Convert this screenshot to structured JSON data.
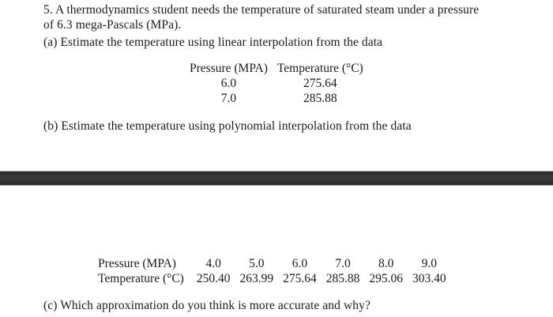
{
  "problem": {
    "number": "5.",
    "statement_line1": "5. A thermodynamics student needs the temperature of saturated steam under a pressure",
    "statement_line2": "of 6.3 mega-Pascals (MPa).",
    "part_a": "(a) Estimate the temperature using linear interpolation from the data",
    "part_b": "(b) Estimate the temperature using polynomial interpolation from the data",
    "part_c": "(c) Which approximation do you think is more accurate and why?"
  },
  "table_a": {
    "headers": [
      "Pressure (MPA)",
      "Temperature (°C)"
    ],
    "rows": [
      [
        "6.0",
        "275.64"
      ],
      [
        "7.0",
        "285.88"
      ]
    ]
  },
  "table_b": {
    "row_labels": [
      "Pressure (MPA)",
      "Temperature (°C)"
    ],
    "pressure": [
      "4.0",
      "5.0",
      "6.0",
      "7.0",
      "8.0",
      "9.0"
    ],
    "temperature": [
      "250.40",
      "263.99",
      "275.64",
      "285.88",
      "295.06",
      "303.40"
    ]
  },
  "colors": {
    "text": "#1a1a1a",
    "divider_bar": "#333333",
    "background": "#ffffff"
  }
}
